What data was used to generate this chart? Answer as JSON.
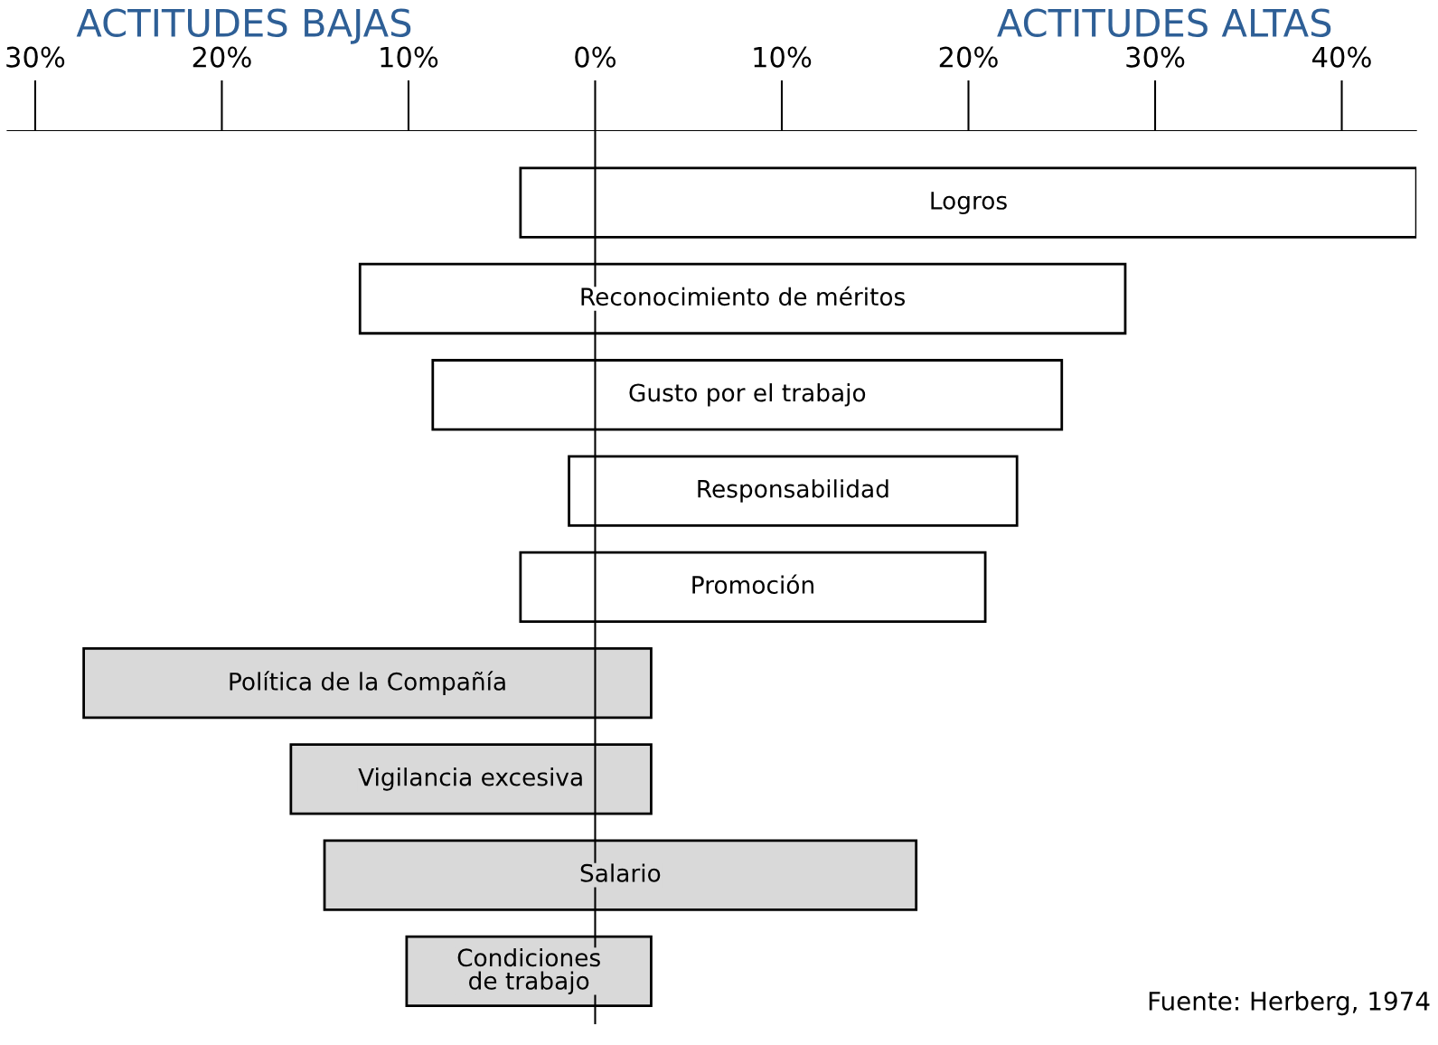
{
  "chart_data": {
    "type": "bar",
    "orientation": "horizontal",
    "categories": [
      "Logros",
      "Reconocimiento de méritos",
      "Gusto por el trabajo",
      "Responsabilidad",
      "Promoción",
      "Política de la Compañía",
      "Vigilancia excesiva",
      "Salario",
      "Condiciones\nde trabajo"
    ],
    "base": [
      -4,
      -12.6,
      -8.7,
      -1.4,
      -4,
      -27.4,
      -16.3,
      -14.5,
      -10.1
    ],
    "values": [
      48,
      41,
      33.7,
      24,
      24.9,
      30.4,
      19.3,
      31.7,
      13.1
    ],
    "colors": [
      "#ffffff",
      "#ffffff",
      "#ffffff",
      "#ffffff",
      "#ffffff",
      "#d9d9d9",
      "#d9d9d9",
      "#d9d9d9",
      "#d9d9d9"
    ],
    "xlim": [
      -31.5,
      44
    ],
    "xticks": [
      {
        "value": -30,
        "label": "30%"
      },
      {
        "value": -20,
        "label": "20%"
      },
      {
        "value": -10,
        "label": "10%"
      },
      {
        "value": 0,
        "label": "0%"
      },
      {
        "value": 10,
        "label": "10%"
      },
      {
        "value": 20,
        "label": "20%"
      },
      {
        "value": 30,
        "label": "30%"
      },
      {
        "value": 40,
        "label": "40%"
      }
    ],
    "ref_lines": [
      {
        "axis": "x",
        "value": 0,
        "color": "#000000"
      }
    ],
    "annotations": [
      "ACTITUDES BAJAS",
      "ACTITUDES ALTAS",
      "Fuente: Herberg, 1974"
    ],
    "grid": false,
    "legend": false
  }
}
